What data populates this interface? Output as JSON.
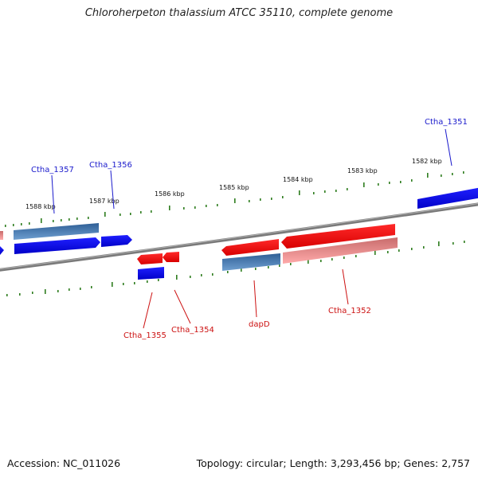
{
  "title": "Chloroherpeton thalassium ATCC 35110, complete genome",
  "footer": {
    "accession": "Accession: NC_011026",
    "summary": "Topology: circular; Length: 3,293,456 bp; Genes: 2,757"
  },
  "colors": {
    "backbone": "#7f7f7f",
    "tick": "#2e7d1f",
    "forward_label": "#1a1acc",
    "reverse_label": "#cc1111",
    "cds": "#0a0af0",
    "gene_blue": "#3d6fa8",
    "red": "#ee1111",
    "pink": "#f08a8a"
  },
  "scale": {
    "tick_labels": [
      "1582 kbp",
      "1583 kbp",
      "1584 kbp",
      "1585 kbp",
      "1586 kbp",
      "1587 kbp",
      "1588 kbp"
    ]
  },
  "forward_genes": [
    {
      "label": "Ctha_1351",
      "kind": "cds"
    },
    {
      "label": "Ctha_1356",
      "kind": "cds"
    },
    {
      "label": "Ctha_1357",
      "kind": "cds"
    }
  ],
  "reverse_genes": [
    {
      "label": "Ctha_1352",
      "kind": "cds"
    },
    {
      "label": "dapD",
      "kind": "cds"
    },
    {
      "label": "Ctha_1354",
      "kind": "cds"
    },
    {
      "label": "Ctha_1355",
      "kind": "cds"
    }
  ]
}
